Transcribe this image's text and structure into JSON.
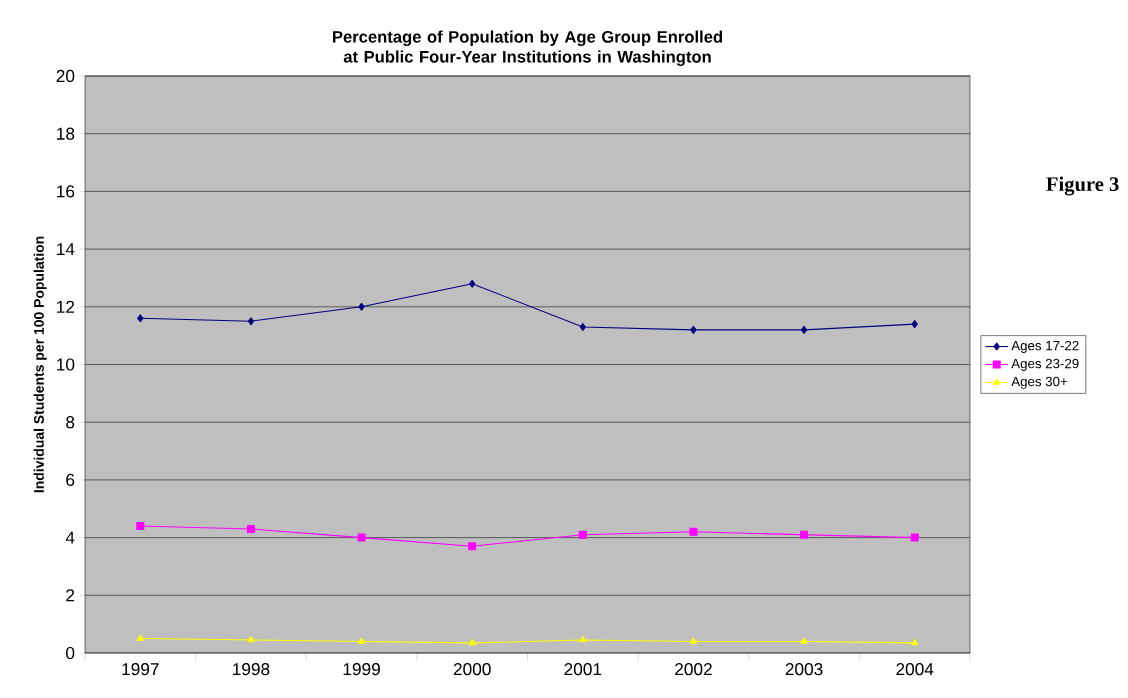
{
  "chart_data": {
    "type": "line",
    "title": "Percentage of Population by Age Group Enrolled at Public Four-Year Institutions in Washington",
    "ylabel": "Individual Students per 100 Population",
    "categories": [
      "1997",
      "1998",
      "1999",
      "2000",
      "2001",
      "2002",
      "2003",
      "2004"
    ],
    "series": [
      {
        "name": "Ages 17-22",
        "color": "#000080",
        "marker": "diamond",
        "values": [
          11.6,
          11.5,
          12.0,
          12.8,
          11.3,
          11.2,
          11.2,
          11.4
        ]
      },
      {
        "name": "Ages 23-29",
        "color": "#ff00ff",
        "marker": "square",
        "values": [
          4.4,
          4.3,
          4.0,
          3.7,
          4.1,
          4.2,
          4.1,
          4.0
        ]
      },
      {
        "name": "Ages 30+",
        "color": "#ffff00",
        "marker": "triangle",
        "values": [
          0.5,
          0.45,
          0.4,
          0.35,
          0.45,
          0.4,
          0.4,
          0.35
        ]
      }
    ],
    "ylim": [
      0,
      20
    ],
    "yticks": [
      0,
      2,
      4,
      6,
      8,
      10,
      12,
      14,
      16,
      18,
      20
    ],
    "grid": "y",
    "legend": "right",
    "line_style": "solid",
    "annotations": [
      "Figure 3"
    ]
  }
}
